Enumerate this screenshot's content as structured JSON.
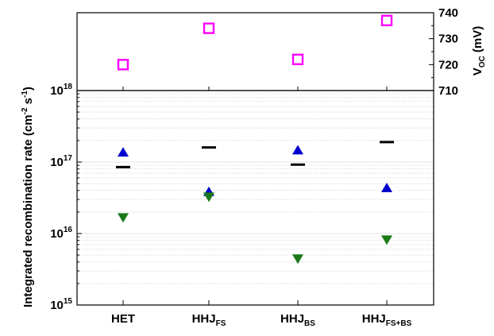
{
  "chart_data": [
    {
      "type": "scatter",
      "panel": "top",
      "ylabel_main": "V",
      "ylabel_sub": "OC",
      "ylabel_unit": " (mV)",
      "ylim": [
        710,
        740
      ],
      "yticks": [
        710,
        720,
        730,
        740
      ],
      "y_axis_side": "right",
      "categories": [
        {
          "main": "HET",
          "sub": ""
        },
        {
          "main": "HHJ",
          "sub": "FS"
        },
        {
          "main": "HHJ",
          "sub": "BS"
        },
        {
          "main": "HHJ",
          "sub": "FS+BS"
        }
      ],
      "series": [
        {
          "marker": "open-square",
          "color": "#ff00ff",
          "values": [
            720,
            734,
            722,
            737
          ]
        }
      ],
      "grid": false
    },
    {
      "type": "scatter",
      "panel": "bottom",
      "ylabel_main": "Integrated recombination rate (cm",
      "ylabel_exp1": "-2",
      "ylabel_mid": " s",
      "ylabel_exp2": "-1",
      "ylabel_end": ")",
      "yscale": "log",
      "ylim": [
        1000000000000000.0,
        1e+18
      ],
      "yticks": [
        {
          "value": 1000000000000000.0,
          "base": "10",
          "exp": "15"
        },
        {
          "value": 1e+16,
          "base": "10",
          "exp": "16"
        },
        {
          "value": 1e+17,
          "base": "10",
          "exp": "17"
        },
        {
          "value": 1e+18,
          "base": "10",
          "exp": "18"
        }
      ],
      "categories": [
        {
          "main": "HET",
          "sub": ""
        },
        {
          "main": "HHJ",
          "sub": "FS"
        },
        {
          "main": "HHJ",
          "sub": "BS"
        },
        {
          "main": "HHJ",
          "sub": "FS+BS"
        }
      ],
      "series": [
        {
          "marker": "dash",
          "color": "#000000",
          "values": [
            8.5e+16,
            1.6e+17,
            9.2e+16,
            1.9e+17
          ]
        },
        {
          "marker": "triangle-up",
          "color": "#0000cc",
          "values": [
            1.35e+17,
            3.8e+16,
            1.45e+17,
            4.3e+16
          ]
        },
        {
          "marker": "triangle-down",
          "color": "#1a7a1a",
          "values": [
            1.7e+16,
            3.3e+16,
            4500000000000000.0,
            8300000000000000.0
          ]
        }
      ],
      "grid": true,
      "grid_type": "minor-horizontal"
    }
  ]
}
